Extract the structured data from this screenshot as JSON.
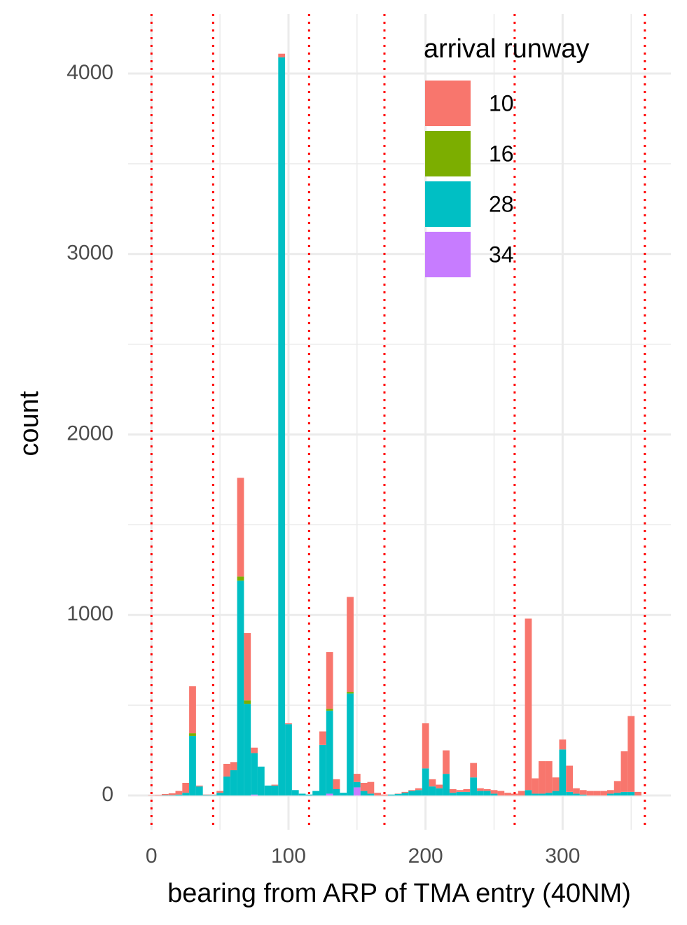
{
  "chart_data": {
    "type": "histogram",
    "stacked": true,
    "x_label": "bearing from ARP of TMA entry (40NM)",
    "y_label": "count",
    "legend_title": "arrival runway",
    "legend_position": "top-right",
    "grid": true,
    "xlim": [
      -17,
      379
    ],
    "ylim": [
      -190,
      4330
    ],
    "xticks": [
      0,
      100,
      200,
      300
    ],
    "yticks": [
      0,
      1000,
      2000,
      3000,
      4000
    ],
    "x_minor_grid": [
      50,
      150,
      250,
      350
    ],
    "y_minor_grid": [
      500,
      1500,
      2500,
      3500
    ],
    "vlines": [
      0,
      45,
      115,
      170,
      265,
      360
    ],
    "vline_color": "#ff0000",
    "bins": [
      -2.5,
      2.5,
      7.5,
      12.5,
      17.5,
      22.5,
      27.5,
      32.5,
      37.5,
      42.5,
      47.5,
      52.5,
      57.5,
      62.5,
      67.5,
      72.5,
      77.5,
      82.5,
      87.5,
      92.5,
      97.5,
      102.5,
      107.5,
      112.5,
      117.5,
      122.5,
      127.5,
      132.5,
      137.5,
      142.5,
      147.5,
      152.5,
      157.5,
      162.5,
      167.5,
      172.5,
      177.5,
      182.5,
      187.5,
      192.5,
      197.5,
      202.5,
      207.5,
      212.5,
      217.5,
      222.5,
      227.5,
      232.5,
      237.5,
      242.5,
      247.5,
      252.5,
      257.5,
      262.5,
      267.5,
      272.5,
      277.5,
      282.5,
      287.5,
      292.5,
      297.5,
      302.5,
      307.5,
      312.5,
      317.5,
      322.5,
      327.5,
      332.5,
      337.5,
      342.5,
      347.5,
      352.5,
      357.5
    ],
    "series": [
      {
        "name": "10",
        "color": "#f8766d",
        "values": [
          2,
          3,
          6,
          10,
          20,
          55,
          260,
          5,
          2,
          2,
          10,
          70,
          45,
          547,
          373,
          30,
          0,
          0,
          5,
          20,
          5,
          0,
          0,
          0,
          0,
          75,
          315,
          55,
          0,
          526,
          45,
          45,
          65,
          15,
          5,
          0,
          2,
          5,
          5,
          10,
          250,
          40,
          20,
          130,
          20,
          10,
          15,
          80,
          15,
          10,
          20,
          25,
          15,
          10,
          25,
          950,
          85,
          180,
          175,
          75,
          55,
          145,
          30,
          25,
          25,
          25,
          25,
          20,
          65,
          225,
          420,
          20
        ]
      },
      {
        "name": "16",
        "color": "#7cae00",
        "values": [
          0,
          0,
          0,
          0,
          0,
          0,
          15,
          0,
          0,
          0,
          0,
          0,
          0,
          23,
          19,
          0,
          0,
          0,
          0,
          0,
          0,
          0,
          0,
          0,
          0,
          0,
          10,
          0,
          0,
          9,
          0,
          0,
          0,
          0,
          0,
          0,
          0,
          0,
          0,
          0,
          0,
          0,
          0,
          0,
          0,
          0,
          0,
          0,
          0,
          0,
          0,
          0,
          0,
          0,
          0,
          0,
          0,
          0,
          0,
          0,
          0,
          0,
          0,
          0,
          0,
          0,
          0,
          0,
          0,
          0,
          0,
          0
        ]
      },
      {
        "name": "28",
        "color": "#00bfc4",
        "values": [
          0,
          0,
          2,
          2,
          5,
          15,
          330,
          50,
          3,
          3,
          15,
          105,
          140,
          1190,
          508,
          230,
          160,
          55,
          55,
          4090,
          395,
          30,
          10,
          5,
          25,
          280,
          460,
          35,
          15,
          565,
          30,
          25,
          10,
          0,
          0,
          5,
          8,
          15,
          25,
          30,
          150,
          50,
          40,
          120,
          15,
          20,
          20,
          100,
          25,
          25,
          10,
          0,
          0,
          0,
          0,
          30,
          10,
          10,
          15,
          25,
          255,
          20,
          10,
          5,
          0,
          0,
          0,
          10,
          15,
          20,
          20,
          0
        ]
      },
      {
        "name": "34",
        "color": "#c77cff",
        "values": [
          0,
          0,
          0,
          0,
          0,
          0,
          0,
          0,
          0,
          0,
          0,
          0,
          0,
          0,
          0,
          5,
          0,
          0,
          0,
          0,
          0,
          0,
          0,
          0,
          0,
          0,
          10,
          0,
          0,
          0,
          45,
          0,
          0,
          0,
          0,
          0,
          0,
          0,
          0,
          0,
          0,
          0,
          0,
          0,
          0,
          0,
          0,
          0,
          0,
          0,
          0,
          0,
          0,
          0,
          0,
          0,
          0,
          0,
          0,
          0,
          0,
          0,
          0,
          0,
          0,
          0,
          0,
          0,
          0,
          0,
          0,
          0
        ]
      }
    ]
  }
}
